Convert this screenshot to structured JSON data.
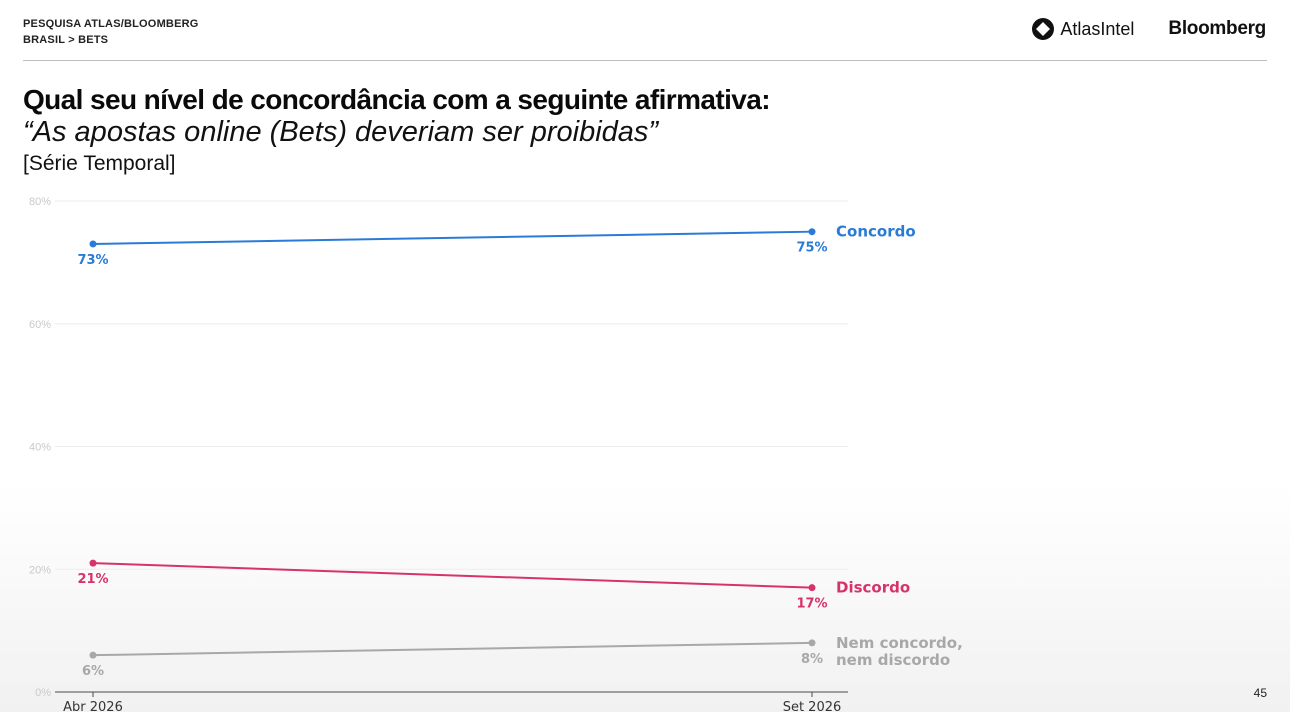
{
  "header": {
    "line1": "PESQUISA ATLAS/BLOOMBERG",
    "line2": "BRASIL > BETS"
  },
  "logos": {
    "atlas": "AtlasIntel",
    "bloomberg": "Bloomberg"
  },
  "title": "Qual seu nível de concordância com a seguinte afirmativa:",
  "subtitle": "“As apostas online (Bets) deveriam ser proibidas”",
  "note": "[Série Temporal]",
  "page_number": "45",
  "chart_data": {
    "type": "line",
    "x": [
      "Abr 2026",
      "Set 2026"
    ],
    "ylim": [
      0,
      80
    ],
    "yticks": [
      {
        "value": 0,
        "label": "0%"
      },
      {
        "value": 20,
        "label": "20%"
      },
      {
        "value": 40,
        "label": "40%"
      },
      {
        "value": 60,
        "label": "60%"
      },
      {
        "value": 80,
        "label": "80%"
      }
    ],
    "grid": true,
    "legend": "inline-right",
    "series": [
      {
        "name": "Concordo",
        "values": [
          73,
          75
        ],
        "labels": [
          "73%",
          "75%"
        ],
        "color": "#2a7bd6"
      },
      {
        "name": "Discordo",
        "values": [
          21,
          17
        ],
        "labels": [
          "21%",
          "17%"
        ],
        "color": "#d6336c"
      },
      {
        "name": "Nem concordo, nem discordo",
        "name_lines": [
          "Nem concordo,",
          "nem discordo"
        ],
        "values": [
          6,
          8
        ],
        "labels": [
          "6%",
          "8%"
        ],
        "color": "#a8a8a8"
      }
    ]
  }
}
